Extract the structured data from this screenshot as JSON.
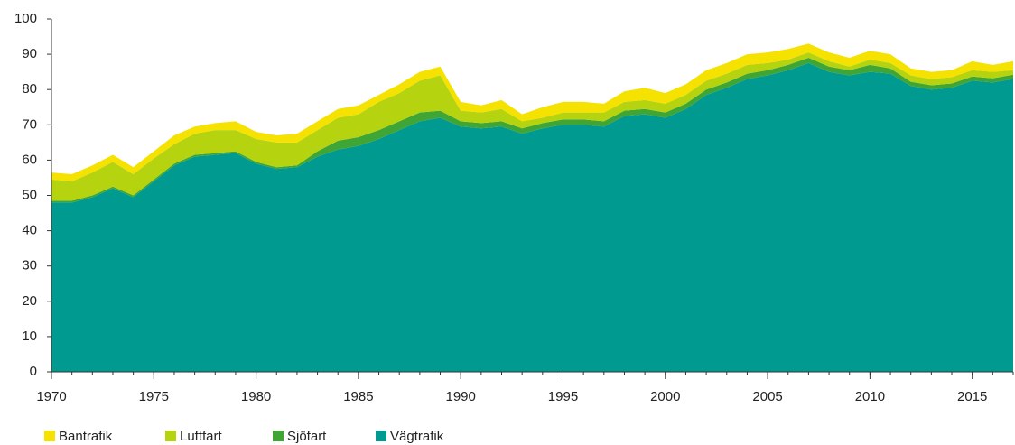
{
  "chart_data": {
    "type": "area",
    "stacked": true,
    "x": [
      1970,
      1971,
      1972,
      1973,
      1974,
      1975,
      1976,
      1977,
      1978,
      1979,
      1980,
      1981,
      1982,
      1983,
      1984,
      1985,
      1986,
      1987,
      1988,
      1989,
      1990,
      1991,
      1992,
      1993,
      1994,
      1995,
      1996,
      1997,
      1998,
      1999,
      2000,
      2001,
      2002,
      2003,
      2004,
      2005,
      2006,
      2007,
      2008,
      2009,
      2010,
      2011,
      2012,
      2013,
      2014,
      2015,
      2016,
      2017
    ],
    "series": [
      {
        "name": "Bantrafik",
        "color": "#f5e200",
        "values": [
          2,
          2,
          2,
          2,
          2,
          2,
          2.5,
          2,
          2,
          2.5,
          2,
          2,
          2.5,
          2.5,
          2.5,
          2.5,
          2,
          2.5,
          2.5,
          2.5,
          2.5,
          2,
          2.5,
          2,
          3,
          3,
          3,
          2.5,
          3,
          3.5,
          3,
          3,
          3,
          3,
          3,
          3,
          3,
          2.5,
          2.5,
          2.5,
          2.5,
          2.5,
          2,
          2,
          2,
          2.5,
          2,
          2.5
        ]
      },
      {
        "name": "Luftfart",
        "color": "#b5d40f",
        "values": [
          6,
          5.5,
          6.5,
          7,
          6,
          6,
          5.5,
          6,
          6.5,
          6,
          6.5,
          7,
          6.5,
          6,
          6.5,
          6.5,
          8,
          8,
          9,
          10,
          3,
          3,
          3.5,
          2,
          1.5,
          2,
          2,
          2.5,
          2.5,
          2.5,
          2.5,
          2.5,
          2.5,
          2.5,
          2.5,
          2,
          1.5,
          1.5,
          1.5,
          1,
          1.5,
          1.5,
          1.8,
          1.8,
          1.8,
          1.8,
          1.8,
          1.3
        ]
      },
      {
        "name": "Sjöfart",
        "color": "#3fa535",
        "values": [
          0.5,
          0.5,
          0.5,
          0.5,
          0.5,
          0.5,
          0.5,
          0.5,
          0.5,
          0.5,
          0.5,
          0.5,
          0.5,
          1.5,
          2.5,
          2.5,
          2.5,
          2.5,
          2.5,
          2,
          1.5,
          1.5,
          1.5,
          1.5,
          1.5,
          1.5,
          1.5,
          1.5,
          1.5,
          1.5,
          1.5,
          1.5,
          1.5,
          1.5,
          1.5,
          1.5,
          1.5,
          1.5,
          1.5,
          1.5,
          2,
          1.5,
          1.2,
          1.2,
          1.2,
          1.2,
          1.2,
          1.2
        ]
      },
      {
        "name": "Vägtrafik",
        "color": "#009a90",
        "values": [
          48,
          48,
          49.5,
          52,
          49.5,
          54,
          58.5,
          61,
          61.5,
          62,
          59,
          57.5,
          58,
          61,
          63,
          64,
          66,
          68.5,
          71,
          72,
          69.5,
          69,
          69.5,
          67.5,
          69,
          70,
          70,
          69.5,
          72.5,
          73,
          72,
          74.5,
          78.5,
          80.5,
          83,
          84,
          85.5,
          87.5,
          85,
          84,
          85,
          84.5,
          81,
          80,
          80.5,
          82.5,
          82,
          83
        ]
      }
    ],
    "xlim": [
      1970,
      2017
    ],
    "xticks": [
      1970,
      1975,
      1980,
      1985,
      1990,
      1995,
      2000,
      2005,
      2010,
      2015
    ],
    "ylim": [
      0,
      100
    ],
    "yticks": [
      0,
      10,
      20,
      30,
      40,
      50,
      60,
      70,
      80,
      90,
      100
    ],
    "legend": "bottom-left"
  }
}
